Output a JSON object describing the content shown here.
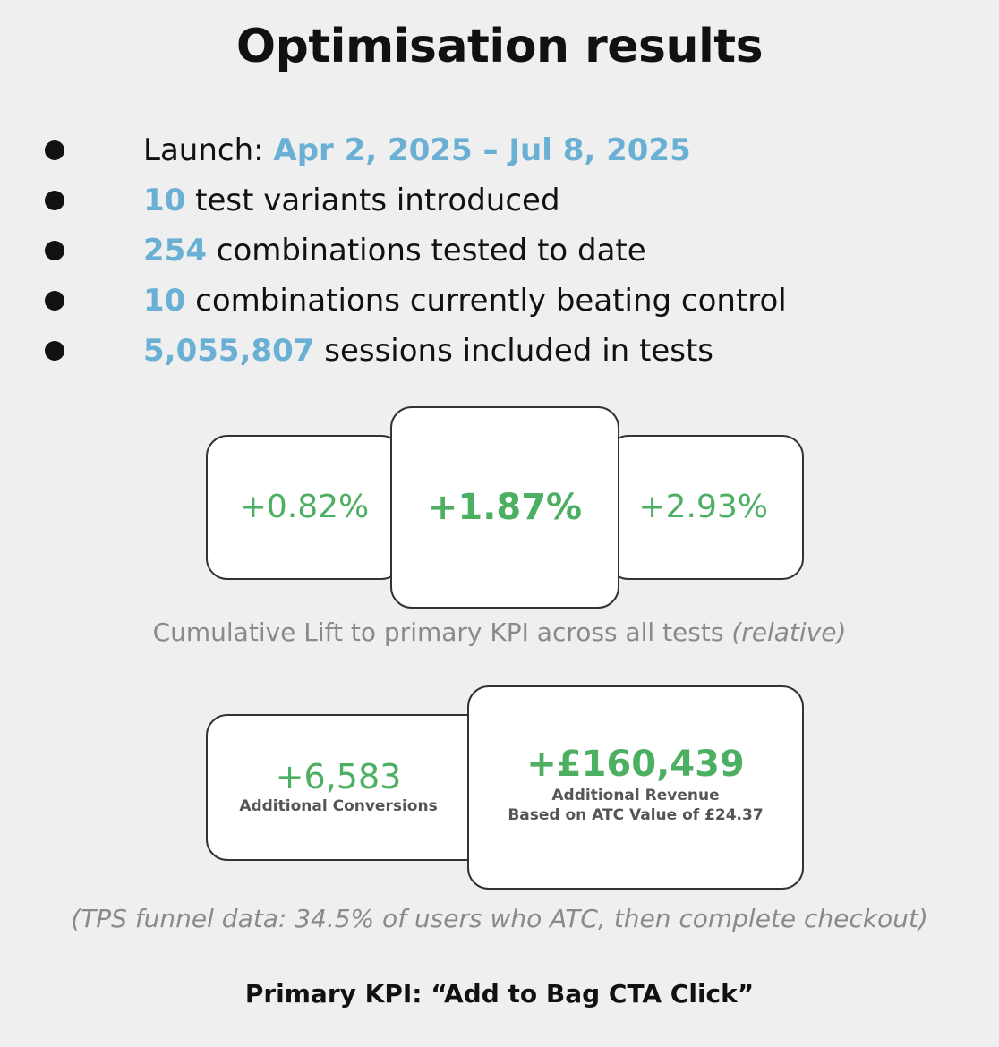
{
  "title": "Optimisation results",
  "bullets": [
    {
      "highlight": "",
      "launch_label": "Launch: ",
      "dates": "Apr 2, 2025 – Jul 8, 2025"
    },
    {
      "highlight": "10",
      "text": " test variants introduced"
    },
    {
      "highlight": "254",
      "text": " combinations tested to date"
    },
    {
      "highlight": "10",
      "text": " combinations currently beating control"
    },
    {
      "highlight": "5,055,807",
      "text": " sessions included in tests"
    }
  ],
  "lift": {
    "low": "+0.82%",
    "mid": "+1.87%",
    "high": "+2.93%",
    "caption": "Cumulative Lift to primary KPI across all tests ",
    "caption_italic": "(relative)"
  },
  "impact": {
    "conversions_value": "+6,583",
    "conversions_label": "Additional Conversions",
    "revenue_value": "+£160,439",
    "revenue_label": "Additional Revenue",
    "revenue_basis": "Based on ATC Value of £24.37"
  },
  "funnel_note": "(TPS funnel data: 34.5% of users who ATC,  then complete checkout)",
  "footer": "Primary KPI: “Add to Bag CTA Click”",
  "colors": {
    "highlight": "#6ab0d4",
    "positive": "#4caf62",
    "caption": "#8a8a8a"
  }
}
